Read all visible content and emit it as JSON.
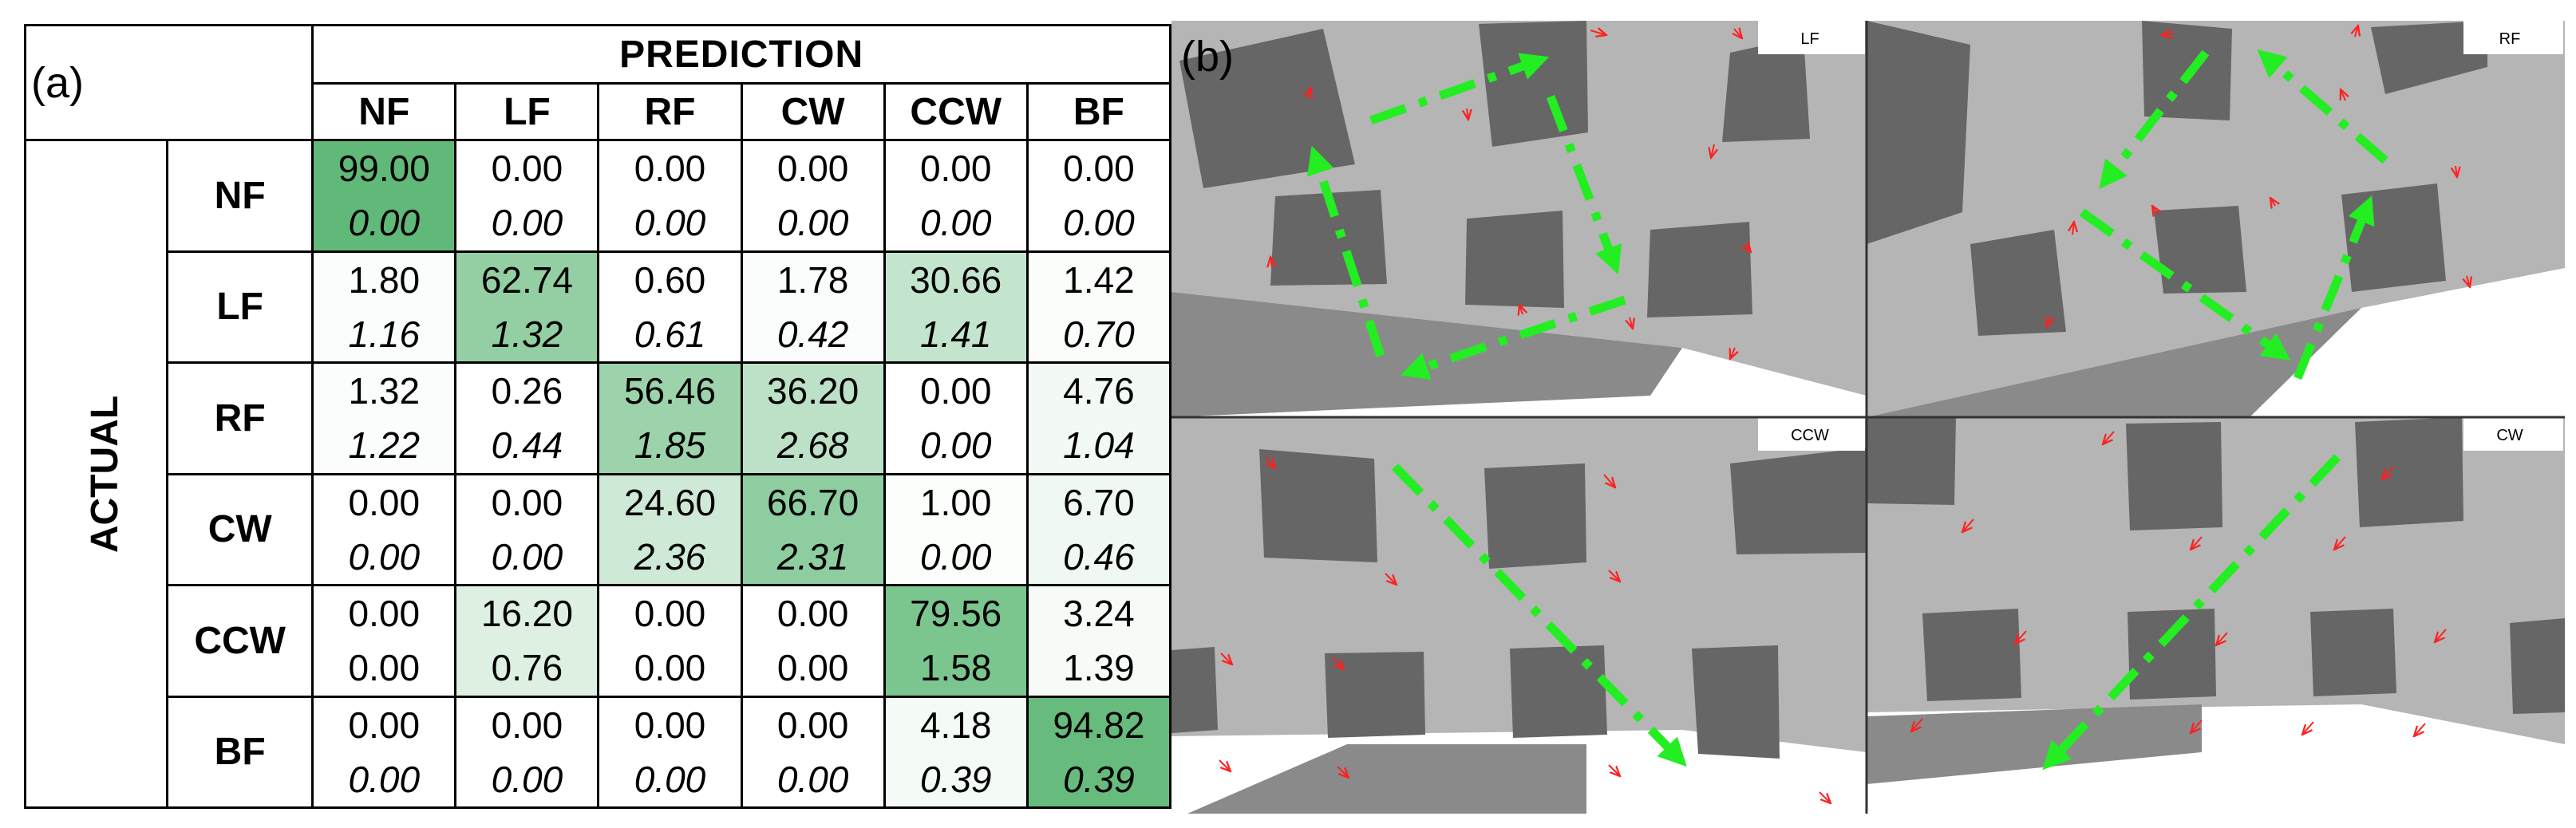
{
  "panel_a": {
    "label": "(a)",
    "prediction_header": "PREDICTION",
    "actual_header": "ACTUAL",
    "columns": [
      "NF",
      "LF",
      "RF",
      "CW",
      "CCW",
      "BF"
    ],
    "rows": [
      {
        "label": "NF",
        "cells": [
          {
            "mean": "99.00",
            "std": "0.00"
          },
          {
            "mean": "0.00",
            "std": "0.00"
          },
          {
            "mean": "0.00",
            "std": "0.00"
          },
          {
            "mean": "0.00",
            "std": "0.00"
          },
          {
            "mean": "0.00",
            "std": "0.00"
          },
          {
            "mean": "0.00",
            "std": "0.00"
          }
        ]
      },
      {
        "label": "LF",
        "cells": [
          {
            "mean": "1.80",
            "std": "1.16"
          },
          {
            "mean": "62.74",
            "std": "1.32"
          },
          {
            "mean": "0.60",
            "std": "0.61"
          },
          {
            "mean": "1.78",
            "std": "0.42"
          },
          {
            "mean": "30.66",
            "std": "1.41"
          },
          {
            "mean": "1.42",
            "std": "0.70"
          }
        ]
      },
      {
        "label": "RF",
        "cells": [
          {
            "mean": "1.32",
            "std": "1.22"
          },
          {
            "mean": "0.26",
            "std": "0.44"
          },
          {
            "mean": "56.46",
            "std": "1.85"
          },
          {
            "mean": "36.20",
            "std": "2.68"
          },
          {
            "mean": "0.00",
            "std": "0.00"
          },
          {
            "mean": "4.76",
            "std": "1.04"
          }
        ]
      },
      {
        "label": "CW",
        "cells": [
          {
            "mean": "0.00",
            "std": "0.00"
          },
          {
            "mean": "0.00",
            "std": "0.00"
          },
          {
            "mean": "24.60",
            "std": "2.36"
          },
          {
            "mean": "66.70",
            "std": "2.31"
          },
          {
            "mean": "1.00",
            "std": "0.00"
          },
          {
            "mean": "6.70",
            "std": "0.46"
          }
        ]
      },
      {
        "label": "CCW",
        "cells": [
          {
            "mean": "0.00",
            "std": "0.00"
          },
          {
            "mean": "16.20",
            "std": "0.76"
          },
          {
            "mean": "0.00",
            "std": "0.00"
          },
          {
            "mean": "0.00",
            "std": "0.00"
          },
          {
            "mean": "79.56",
            "std": "1.58"
          },
          {
            "mean": "3.24",
            "std": "1.39"
          }
        ]
      },
      {
        "label": "BF",
        "cells": [
          {
            "mean": "0.00",
            "std": "0.00"
          },
          {
            "mean": "0.00",
            "std": "0.00"
          },
          {
            "mean": "0.00",
            "std": "0.00"
          },
          {
            "mean": "0.00",
            "std": "0.00"
          },
          {
            "mean": "4.18",
            "std": "0.39"
          },
          {
            "mean": "94.82",
            "std": "0.39"
          }
        ]
      }
    ],
    "colors": {
      "border": "#000000",
      "heat_max": "#5fb877",
      "heat_min": "#ffffff"
    }
  },
  "panel_b": {
    "label": "(b)",
    "views": [
      {
        "label": "LF"
      },
      {
        "label": "RF"
      },
      {
        "label": "CCW"
      },
      {
        "label": "CW"
      }
    ],
    "colors": {
      "wall": "#b5b5b5",
      "box": "#666666",
      "ground": "#ffffff",
      "shadow": "#8a8a8a",
      "trajectory_arrow": "#22ee22",
      "force_arrow": "#ff2020",
      "divider": "#333333"
    }
  }
}
